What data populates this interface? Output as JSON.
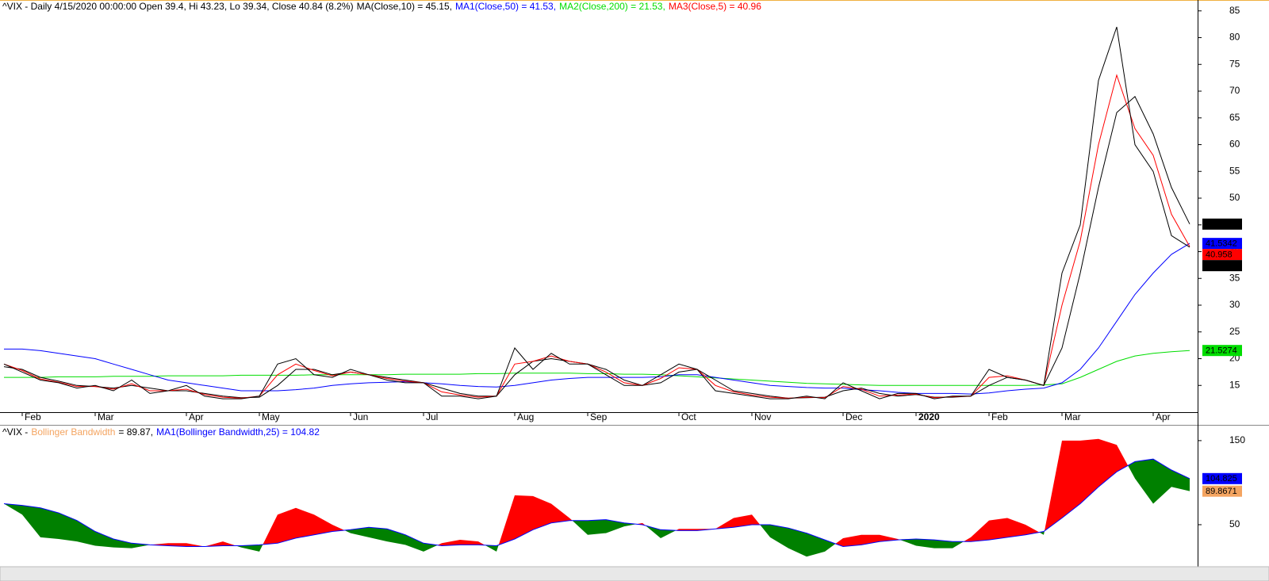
{
  "chart_data": [
    {
      "type": "line",
      "title": "^VIX - Daily 4/15/2020 00:00:00 Open 39.4, Hi 43.23, Lo 39.34, Close 40.84 (8.2%)",
      "categories": [
        null,
        "Feb",
        null,
        null,
        null,
        "Mar",
        null,
        null,
        null,
        null,
        "Apr",
        null,
        null,
        null,
        "May",
        null,
        null,
        null,
        null,
        "Jun",
        null,
        null,
        null,
        "Jul",
        null,
        null,
        null,
        null,
        "Aug",
        null,
        null,
        null,
        "Sep",
        null,
        null,
        null,
        null,
        "Oct",
        null,
        null,
        null,
        "Nov",
        null,
        null,
        null,
        null,
        "Dec",
        null,
        null,
        null,
        "2020",
        null,
        null,
        null,
        "Feb",
        null,
        null,
        null,
        "Mar",
        null,
        null,
        null,
        null,
        "Apr",
        null,
        null
      ],
      "ylim": [
        10,
        86
      ],
      "yticks": [
        15,
        20,
        25,
        30,
        35,
        40,
        45,
        50,
        55,
        60,
        65,
        70,
        75,
        80,
        85
      ],
      "series": [
        {
          "color": "#000000",
          "last_label": "40.84",
          "values": [
            19,
            17.5,
            16,
            15.5,
            14.5,
            15,
            14,
            16,
            13.5,
            14,
            15,
            13,
            12.5,
            12.5,
            13,
            19,
            20,
            17,
            16.5,
            18,
            17,
            16,
            15.5,
            15.5,
            13,
            13,
            12.5,
            13,
            22,
            18,
            21,
            19,
            19,
            17,
            15,
            15,
            17,
            19,
            18,
            14,
            13.5,
            13,
            12.5,
            12.5,
            13,
            12.5,
            15.5,
            14,
            12.5,
            13.5,
            13.5,
            12.5,
            13,
            13,
            18,
            16.5,
            16,
            15,
            36,
            45,
            72,
            82,
            60,
            55,
            43,
            40.84
          ]
        },
        {
          "name": "MA(Close,10) = 45.15,",
          "color": "#000000",
          "last_label": "45.15",
          "values": [
            18.5,
            18,
            16.5,
            15.8,
            15,
            14.8,
            14.5,
            15,
            14.5,
            14,
            14,
            13.5,
            13,
            12.7,
            12.8,
            15,
            18,
            18,
            17,
            17.5,
            17,
            16.5,
            16,
            15.5,
            14.5,
            13.5,
            13,
            13,
            17,
            19.5,
            20,
            19.5,
            19,
            18,
            16,
            15,
            15.5,
            17.5,
            18,
            16,
            14,
            13.5,
            13,
            12.6,
            12.7,
            12.8,
            14,
            14.5,
            13.5,
            13,
            13.3,
            12.8,
            12.8,
            13,
            15,
            16.5,
            16,
            15,
            22,
            36,
            52,
            66,
            69,
            62,
            52,
            45.15
          ]
        },
        {
          "name": "MA1(Close,50) = 41.53,",
          "color": "#0000ff",
          "last_label": "41.5342",
          "values": [
            21.8,
            21.8,
            21.5,
            21,
            20.5,
            20,
            19,
            18,
            17,
            16,
            15.5,
            15,
            14.5,
            14,
            14,
            14,
            14.2,
            14.5,
            15,
            15.3,
            15.5,
            15.6,
            15.7,
            15.5,
            15.3,
            15,
            14.8,
            14.7,
            15,
            15.5,
            16,
            16.3,
            16.5,
            16.5,
            16.5,
            16.5,
            16.6,
            17,
            17,
            16.5,
            16,
            15.5,
            15,
            14.8,
            14.6,
            14.5,
            14.5,
            14.2,
            14,
            13.7,
            13.5,
            13.5,
            13.5,
            13.4,
            13.6,
            14,
            14.3,
            14.5,
            15.5,
            18,
            22,
            27,
            32,
            36,
            39.5,
            41.5342
          ]
        },
        {
          "name": "MA2(Close,200) = 21.53,",
          "color": "#00dd00",
          "last_label": "21.5274",
          "values": [
            16.5,
            16.5,
            16.5,
            16.6,
            16.6,
            16.6,
            16.7,
            16.7,
            16.7,
            16.8,
            16.8,
            16.8,
            16.8,
            16.9,
            16.9,
            16.9,
            16.9,
            17,
            17,
            17,
            17,
            17,
            17.1,
            17.1,
            17.1,
            17.1,
            17.2,
            17.2,
            17.3,
            17.3,
            17.3,
            17.3,
            17.2,
            17.2,
            17.1,
            17.1,
            17,
            16.8,
            16.6,
            16.4,
            16.2,
            16,
            15.8,
            15.6,
            15.4,
            15.3,
            15.2,
            15.1,
            15,
            15,
            15,
            15,
            15,
            15,
            15,
            15,
            15,
            15.1,
            15.3,
            16.5,
            18,
            19.5,
            20.5,
            21,
            21.3,
            21.5274
          ]
        },
        {
          "name": "MA3(Close,5) = 40.96",
          "color": "#ff0000",
          "last_label": "40.958",
          "values": [
            19,
            17.8,
            16.2,
            15.6,
            14.8,
            14.8,
            14.3,
            15.3,
            14,
            14,
            14.3,
            13.3,
            12.8,
            12.6,
            13,
            17,
            19,
            17.8,
            16.8,
            17.5,
            17,
            16.3,
            15.8,
            15.5,
            13.8,
            13.2,
            12.8,
            13,
            19,
            19.5,
            20.5,
            19.5,
            19,
            17.5,
            15.5,
            15,
            16.3,
            18.3,
            18,
            15,
            13.8,
            13.2,
            12.8,
            12.6,
            12.8,
            12.7,
            14.8,
            14.3,
            13,
            13.2,
            13.4,
            12.7,
            12.9,
            13,
            16.5,
            16.8,
            16,
            15,
            30,
            42,
            60,
            73,
            63,
            58,
            47,
            40.958
          ]
        }
      ]
    },
    {
      "type": "band",
      "title": "^VIX -",
      "ylim": [
        0,
        165
      ],
      "yticks": [
        50,
        150
      ],
      "fill_above_color": "#ff0000",
      "fill_below_color": "#008000",
      "series": [
        {
          "name": "Bollinger Bandwidth",
          "legend_value": "= 89.87,",
          "color": "#f4a460",
          "last_label": "89.8671",
          "values": [
            75,
            62,
            35,
            33,
            30,
            25,
            23,
            22,
            26,
            28,
            28,
            24,
            30,
            23,
            18,
            62,
            70,
            62,
            50,
            40,
            35,
            30,
            26,
            18,
            28,
            32,
            30,
            18,
            85,
            84,
            75,
            58,
            38,
            40,
            48,
            52,
            34,
            45,
            45,
            45,
            58,
            62,
            35,
            22,
            12,
            18,
            34,
            38,
            38,
            33,
            25,
            22,
            22,
            35,
            55,
            58,
            50,
            38,
            150,
            150,
            152,
            145,
            105,
            75,
            95,
            89.8671
          ]
        },
        {
          "name": "MA1(Bollinger Bandwidth,25) = 104.82",
          "color": "#0000ff",
          "last_label": "104.825",
          "values": [
            75,
            73,
            70,
            64,
            55,
            42,
            33,
            28,
            26,
            25,
            24,
            24,
            25,
            25,
            26,
            28,
            34,
            38,
            42,
            44,
            47,
            45,
            38,
            28,
            25,
            26,
            26,
            25,
            33,
            44,
            52,
            55,
            55,
            56,
            52,
            50,
            44,
            43,
            43,
            45,
            47,
            50,
            50,
            46,
            40,
            32,
            24,
            26,
            30,
            32,
            33,
            32,
            30,
            30,
            32,
            35,
            38,
            42,
            58,
            75,
            95,
            113,
            125,
            128,
            115,
            104.825
          ]
        }
      ]
    }
  ]
}
